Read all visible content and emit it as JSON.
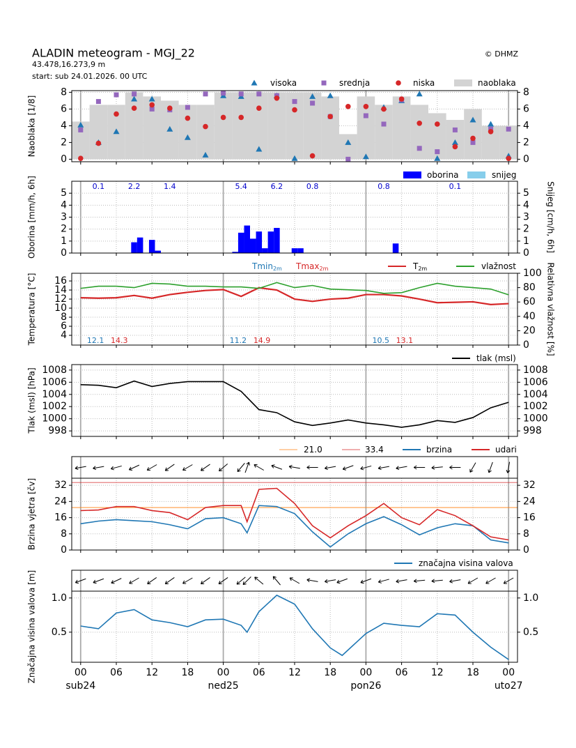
{
  "header": {
    "title": "ALADIN meteogram - MGJ_22",
    "location": "43.478,16.273,9 m",
    "start": "start: sub 24.01.2026. 00 UTC",
    "copyright": "© DHMZ"
  },
  "chart_data": [
    {
      "type": "cloud",
      "ylabel": "Naoblaka [1/8]",
      "xlim": [
        -1.5,
        73.5
      ],
      "xticks": [
        0,
        6,
        12,
        18,
        24,
        30,
        36,
        42,
        48,
        54,
        60,
        66,
        72
      ],
      "ylim": [
        -0.3,
        8.2
      ],
      "yticks": [
        0,
        2,
        4,
        6,
        8
      ],
      "grid": true,
      "x": [
        0,
        3,
        6,
        9,
        12,
        15,
        18,
        21,
        24,
        27,
        30,
        33,
        36,
        39,
        42,
        45,
        48,
        51,
        54,
        57,
        60,
        63,
        66,
        69,
        72
      ],
      "series": [
        {
          "name": "visoka",
          "color": "#1f77b4",
          "marker": "triangle",
          "values": [
            4.1,
            2.0,
            3.3,
            7.2,
            7.2,
            3.6,
            2.6,
            0.5,
            7.6,
            7.5,
            1.2,
            7.6,
            0.1,
            7.5,
            7.6,
            2.0,
            0.3,
            6.2,
            7.0,
            7.8,
            0.1,
            2.0,
            4.7,
            4.2,
            0.4
          ]
        },
        {
          "name": "srednja",
          "color": "#9467bd",
          "marker": "square",
          "values": [
            3.5,
            6.9,
            7.7,
            7.8,
            6.0,
            5.9,
            6.2,
            7.8,
            7.9,
            7.8,
            7.8,
            7.6,
            6.9,
            6.7,
            5.1,
            0.0,
            5.2,
            4.2,
            7.1,
            1.3,
            0.9,
            3.5,
            2.0,
            3.6,
            3.6
          ]
        },
        {
          "name": "niska",
          "color": "#d62728",
          "marker": "circle",
          "values": [
            0.1,
            1.9,
            5.4,
            6.1,
            6.5,
            6.1,
            4.9,
            3.9,
            5.0,
            5.0,
            6.1,
            7.3,
            5.9,
            0.4,
            5.1,
            6.3,
            6.3,
            6.0,
            7.2,
            4.3,
            4.2,
            1.5,
            2.5,
            3.3,
            0.1
          ]
        },
        {
          "name": "naoblaka",
          "color": "#d3d3d3",
          "marker": "bar",
          "values": [
            4.5,
            6.5,
            6.5,
            8,
            7.5,
            7,
            6.5,
            6.5,
            8,
            8,
            8,
            8,
            8,
            8,
            7.5,
            3,
            7.5,
            6.5,
            7.5,
            6.5,
            5.5,
            4.7,
            6,
            4,
            4
          ]
        }
      ]
    },
    {
      "type": "bar",
      "ylabel": "Oborina [mm/h, 6h]",
      "y2label": "Snijeg [cm/h, 6h]",
      "xlim": [
        -1.5,
        73.5
      ],
      "xticks": [
        0,
        6,
        12,
        18,
        24,
        30,
        36,
        42,
        48,
        54,
        60,
        66,
        72
      ],
      "ylim": [
        0,
        6
      ],
      "yticks": [
        0,
        1,
        2,
        3,
        4,
        5
      ],
      "y2lim": [
        0,
        6
      ],
      "y2ticks": [
        0,
        1,
        2,
        3,
        4,
        5
      ],
      "grid": true,
      "x": [
        9,
        10,
        12,
        13,
        26,
        27,
        28,
        29,
        30,
        31,
        32,
        33,
        36,
        37,
        53
      ],
      "series": [
        {
          "name": "oborina",
          "color": "#0000ff",
          "values": [
            0.9,
            1.3,
            1.1,
            0.2,
            0.1,
            1.7,
            2.3,
            1.2,
            1.8,
            0.4,
            1.8,
            2.1,
            0.4,
            0.4,
            0.8
          ]
        },
        {
          "name": "snijeg",
          "color": "#87ceeb"
        }
      ],
      "totals_x": [
        3,
        9,
        15,
        27,
        33,
        39,
        51,
        63
      ],
      "totals": [
        0.1,
        2.2,
        1.4,
        5.4,
        6.2,
        0.8,
        0.8,
        0.1
      ]
    },
    {
      "type": "line",
      "ylabel": "Temperatura [°C]",
      "y2label": "Relativna vlažnost [%]",
      "xlim": [
        -1.5,
        73.5
      ],
      "xticks": [
        0,
        6,
        12,
        18,
        24,
        30,
        36,
        42,
        48,
        54,
        60,
        66,
        72
      ],
      "ylim": [
        1.85,
        17.7
      ],
      "yticks": [
        4,
        6,
        8,
        10,
        12,
        14,
        16
      ],
      "y2lim": [
        0,
        100
      ],
      "y2ticks": [
        0,
        20,
        40,
        60,
        80,
        100
      ],
      "grid": true,
      "tmin_label": "Tmin",
      "tmax_label": "Tmax",
      "subscript": "2m",
      "x": [
        0,
        3,
        6,
        9,
        12,
        15,
        18,
        21,
        24,
        27,
        30,
        33,
        36,
        39,
        42,
        45,
        48,
        51,
        54,
        57,
        60,
        63,
        66,
        69,
        72
      ],
      "series": [
        {
          "name": "T",
          "color": "#d62728",
          "values": [
            12.3,
            12.2,
            12.3,
            12.8,
            12.2,
            13.0,
            13.5,
            13.9,
            14.1,
            12.6,
            14.5,
            14.0,
            12.0,
            11.5,
            12.0,
            12.2,
            13.0,
            13.0,
            12.7,
            12.0,
            11.2,
            11.3,
            11.4,
            10.8,
            11.0
          ]
        },
        {
          "name": "vlažnost",
          "color": "#2ca02c",
          "axis": "y2",
          "values": [
            79,
            82,
            82,
            80,
            86,
            85,
            82,
            82,
            81,
            81,
            79,
            87,
            80,
            83,
            78,
            77,
            76,
            72,
            73,
            80,
            86,
            82,
            80,
            78,
            70
          ]
        }
      ],
      "daily_tmin": [
        12.1,
        11.2,
        10.5
      ],
      "daily_tmax": [
        14.3,
        14.9,
        13.1
      ]
    },
    {
      "type": "line",
      "ylabel": "Tlak (msl) [hPa]",
      "xlim": [
        -1.5,
        73.5
      ],
      "xticks": [
        0,
        6,
        12,
        18,
        24,
        30,
        36,
        42,
        48,
        54,
        60,
        66,
        72
      ],
      "ylim": [
        997.1,
        1008.9
      ],
      "yticks": [
        998,
        1000,
        1002,
        1004,
        1006,
        1008
      ],
      "grid": true,
      "x": [
        0,
        3,
        6,
        9,
        12,
        15,
        18,
        21,
        24,
        27,
        30,
        33,
        36,
        39,
        42,
        45,
        48,
        51,
        54,
        57,
        60,
        63,
        66,
        69,
        72
      ],
      "series": [
        {
          "name": "tlak (msl)",
          "color": "#000000",
          "values": [
            1005.6,
            1005.5,
            1005.1,
            1006.2,
            1005.3,
            1005.8,
            1006.1,
            1006.1,
            1006.1,
            1004.5,
            1001.5,
            1001.0,
            999.5,
            998.9,
            999.3,
            999.8,
            999.3,
            999.0,
            998.6,
            999.0,
            999.7,
            999.4,
            1000.2,
            1001.8,
            1002.7
          ]
        }
      ]
    },
    {
      "type": "line",
      "ylabel": "Brzina vjetra  [čv]",
      "xlim": [
        -1.5,
        73.5
      ],
      "xticks": [
        0,
        6,
        12,
        18,
        24,
        30,
        36,
        42,
        48,
        54,
        60,
        66,
        72
      ],
      "ylim": [
        0,
        35.5
      ],
      "yticks": [
        0,
        8,
        16,
        24,
        32
      ],
      "grid": true,
      "x": [
        0,
        3,
        6,
        9,
        12,
        15,
        18,
        21,
        24,
        27,
        28,
        30,
        33,
        36,
        39,
        42,
        45,
        48,
        51,
        54,
        57,
        60,
        63,
        66,
        69,
        72
      ],
      "thresholds": [
        {
          "name": "21.0",
          "value": 21,
          "color": "#ff7f0e"
        },
        {
          "name": "33.4",
          "value": 33.4,
          "color": "#d62728"
        }
      ],
      "series": [
        {
          "name": "brzina",
          "color": "#1f77b4",
          "values": [
            13,
            14.3,
            15,
            14.5,
            14,
            12.5,
            10.5,
            15.5,
            16,
            13,
            8.5,
            22,
            21.5,
            18,
            9,
            1.5,
            8,
            13,
            16.5,
            12.5,
            7.5,
            11,
            13,
            12,
            5,
            3.5
          ]
        },
        {
          "name": "udari",
          "color": "#d62728",
          "values": [
            19.5,
            19.8,
            21.5,
            21.5,
            19.5,
            18.5,
            15,
            21,
            22,
            22,
            14,
            30,
            30.5,
            23,
            12,
            6,
            12,
            17,
            23,
            16,
            12.5,
            20,
            17,
            12,
            6.5,
            5
          ]
        }
      ],
      "direction": [
        80,
        80,
        75,
        65,
        60,
        55,
        60,
        55,
        50,
        40,
        200,
        120,
        110,
        100,
        90,
        80,
        70,
        75,
        80,
        80,
        90,
        85,
        90,
        30,
        20,
        10
      ]
    },
    {
      "type": "line",
      "ylabel": "Značajna visina valova [m]",
      "xlim": [
        -1.5,
        73.5
      ],
      "ylim": [
        0.06,
        1.1
      ],
      "yticks": [
        0.5,
        {
          "value": 1,
          "label": "1.0"
        }
      ],
      "grid": true,
      "xticks": [
        {
          "value": 0,
          "label": "00"
        },
        {
          "value": 6,
          "label": "06"
        },
        {
          "value": 12,
          "label": "12"
        },
        {
          "value": 18,
          "label": "18"
        },
        {
          "value": 24,
          "label": "00"
        },
        {
          "value": 30,
          "label": "06"
        },
        {
          "value": 36,
          "label": "12"
        },
        {
          "value": 42,
          "label": "18"
        },
        {
          "value": 48,
          "label": "00"
        },
        {
          "value": 54,
          "label": "06"
        },
        {
          "value": 60,
          "label": "12"
        },
        {
          "value": 66,
          "label": "18"
        },
        {
          "value": 72,
          "label": "00"
        }
      ],
      "days": [
        {
          "value": 0,
          "label": "sub24"
        },
        {
          "value": 24,
          "label": "ned25"
        },
        {
          "value": 48,
          "label": "pon26"
        },
        {
          "value": 72,
          "label": "uto27"
        }
      ],
      "x": [
        0,
        3,
        6,
        9,
        12,
        15,
        18,
        21,
        24,
        27,
        28,
        30,
        33,
        36,
        39,
        42,
        44,
        48,
        51,
        54,
        57,
        60,
        63,
        66,
        69,
        72
      ],
      "series": [
        {
          "name": "značajna visina valova",
          "color": "#1f77b4",
          "values": [
            0.59,
            0.55,
            0.78,
            0.83,
            0.68,
            0.64,
            0.58,
            0.68,
            0.69,
            0.6,
            0.5,
            0.8,
            1.04,
            0.91,
            0.55,
            0.27,
            0.16,
            0.48,
            0.63,
            0.6,
            0.58,
            0.77,
            0.75,
            0.5,
            0.28,
            0.1
          ]
        }
      ],
      "direction": [
        70,
        70,
        65,
        60,
        55,
        55,
        60,
        55,
        55,
        50,
        45,
        130,
        140,
        120,
        100,
        80,
        70,
        70,
        75,
        80,
        85,
        85,
        80,
        60,
        60,
        60
      ]
    }
  ]
}
